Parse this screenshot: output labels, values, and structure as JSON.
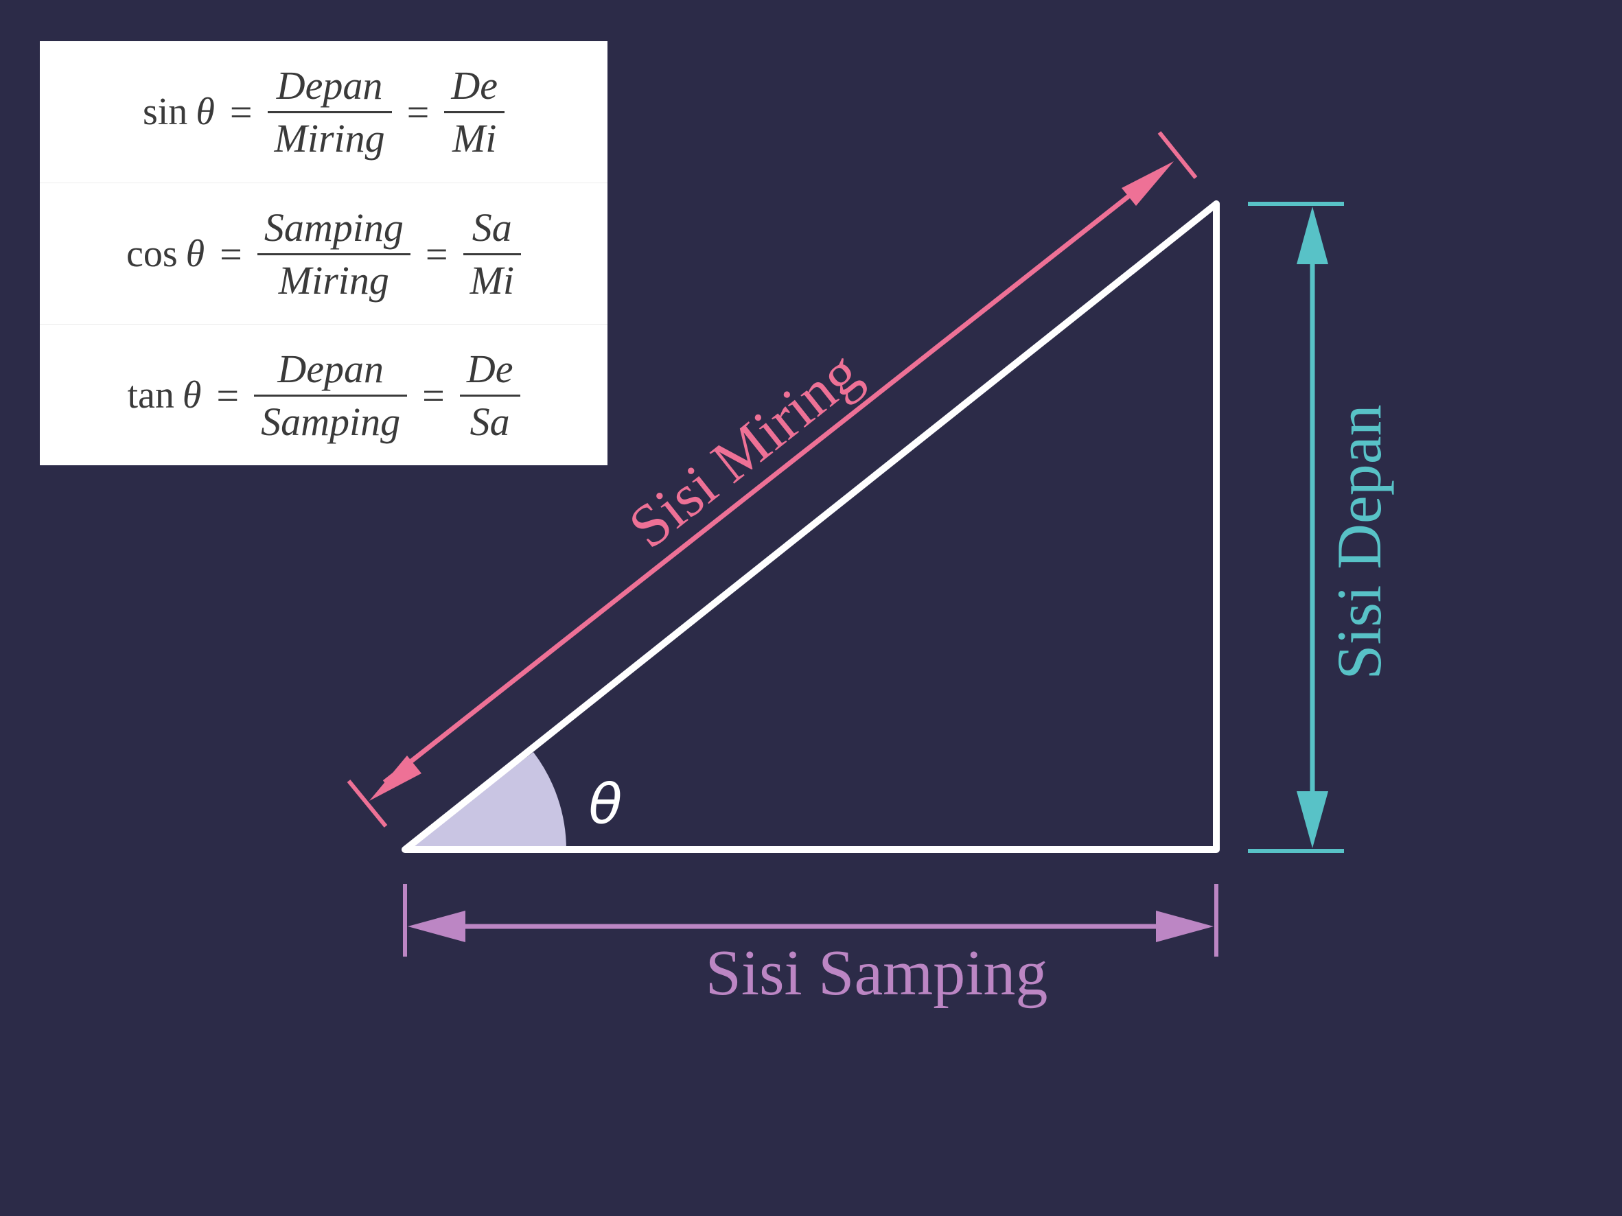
{
  "formulas": [
    {
      "fn": "sin",
      "var": "θ",
      "num": "Depan",
      "den": "Miring",
      "short_num": "De",
      "short_den": "Mi"
    },
    {
      "fn": "cos",
      "var": "θ",
      "num": "Samping",
      "den": "Miring",
      "short_num": "Sa",
      "short_den": "Mi"
    },
    {
      "fn": "tan",
      "var": "θ",
      "num": "Depan",
      "den": "Samping",
      "short_num": "De",
      "short_den": "Sa"
    }
  ],
  "equals": "=",
  "labels": {
    "hypotenuse": "Sisi Miring",
    "opposite": "Sisi Depan",
    "adjacent": "Sisi Samping",
    "angle": "θ"
  },
  "colors": {
    "background": "#2c2b48",
    "triangle": "#ffffff",
    "angle_fill": "#c9c5e3",
    "hypotenuse": "#ee7196",
    "opposite": "#58c2c7",
    "adjacent": "#bc86c4"
  }
}
